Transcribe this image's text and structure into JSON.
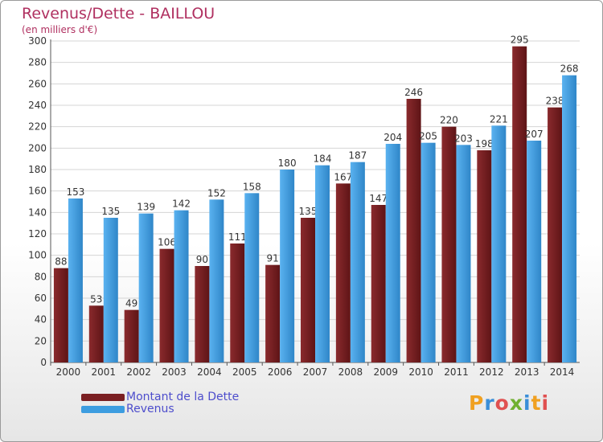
{
  "title": "Revenus/Dette - BAILLOU",
  "subtitle": "(en milliers d'€)",
  "logo": {
    "letters": [
      "P",
      "r",
      "o",
      "x",
      "i",
      "t",
      "i"
    ],
    "colors": [
      "#f0a020",
      "#3a8ed8",
      "#e05050",
      "#70b030",
      "#3a8ed8",
      "#f0a020",
      "#e05050"
    ]
  },
  "legend": [
    {
      "label": "Montant de la Dette",
      "color": "#7a1f22"
    },
    {
      "label": "Revenus",
      "color": "#3d9de0"
    }
  ],
  "chart_data": {
    "type": "bar",
    "categories": [
      "2000",
      "2001",
      "2002",
      "2003",
      "2004",
      "2005",
      "2006",
      "2007",
      "2008",
      "2009",
      "2010",
      "2011",
      "2012",
      "2013",
      "2014"
    ],
    "series": [
      {
        "name": "Montant de la Dette",
        "color": "#7a1f22",
        "values": [
          88,
          53,
          49,
          106,
          90,
          111,
          91,
          135,
          167,
          147,
          246,
          220,
          198,
          295,
          238
        ]
      },
      {
        "name": "Revenus",
        "color": "#3d9de0",
        "values": [
          153,
          135,
          139,
          142,
          152,
          158,
          180,
          184,
          187,
          204,
          205,
          203,
          221,
          207,
          268
        ]
      }
    ],
    "ylim": [
      0,
      300
    ],
    "yticks": [
      0,
      20,
      40,
      60,
      80,
      100,
      120,
      140,
      160,
      180,
      200,
      220,
      240,
      260,
      280,
      300
    ],
    "grid": true,
    "legend_position": "bottom-left"
  }
}
